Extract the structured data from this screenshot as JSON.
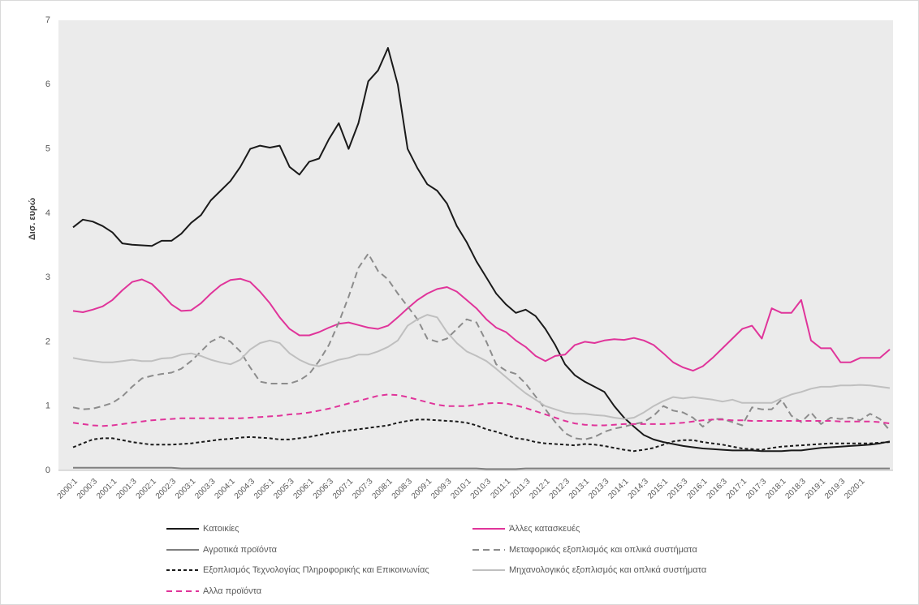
{
  "chart_data": {
    "type": "line",
    "y_label": "Δισ. ευρώ",
    "categories": [
      "2000:1",
      null,
      "2000:3",
      null,
      "2001:1",
      null,
      "2001:3",
      null,
      "2002:1",
      null,
      "2002:3",
      null,
      "2003:1",
      null,
      "2003:3",
      null,
      "2004:1",
      null,
      "2004:3",
      null,
      "2005:1",
      null,
      "2005:3",
      null,
      "2006:1",
      null,
      "2006:3",
      null,
      "2007:1",
      null,
      "2007:3",
      null,
      "2008:1",
      null,
      "2008:3",
      null,
      "2009:1",
      null,
      "2009:3",
      null,
      "2010:1",
      null,
      "2010:3",
      null,
      "2011:1",
      null,
      "2011:3",
      null,
      "2012:1",
      null,
      "2012:3",
      null,
      "2013:1",
      null,
      "2013:3",
      null,
      "2014:1",
      null,
      "2014:3",
      null,
      "2015:1",
      null,
      "2015:3",
      null,
      "2016:1",
      null,
      "2016:3",
      null,
      "2017:1",
      null,
      "2017:3",
      null,
      "2018:1",
      null,
      "2018:3",
      null,
      "2019:1",
      null,
      "2019:3",
      null,
      "2020:1",
      null,
      null,
      null
    ],
    "ylim": [
      0,
      7
    ],
    "yticks": [
      0,
      1,
      2,
      3,
      4,
      5,
      6,
      7
    ],
    "series": [
      {
        "name": "Κατοικίες",
        "color": "#1a1a1a",
        "dash": false,
        "values": [
          3.78,
          3.9,
          3.87,
          3.8,
          3.7,
          3.53,
          3.51,
          3.5,
          3.49,
          3.57,
          3.57,
          3.68,
          3.85,
          3.97,
          4.2,
          4.35,
          4.5,
          4.72,
          5.0,
          5.05,
          5.02,
          5.05,
          4.72,
          4.6,
          4.8,
          4.85,
          5.15,
          5.4,
          5.0,
          5.4,
          6.05,
          6.22,
          6.57,
          6.0,
          5.0,
          4.7,
          4.45,
          4.35,
          4.15,
          3.8,
          3.55,
          3.25,
          3.0,
          2.75,
          2.58,
          2.45,
          2.5,
          2.4,
          2.2,
          1.95,
          1.65,
          1.48,
          1.38,
          1.3,
          1.22,
          1.0,
          0.82,
          0.68,
          0.55,
          0.48,
          0.44,
          0.41,
          0.38,
          0.36,
          0.34,
          0.33,
          0.32,
          0.31,
          0.31,
          0.31,
          0.3,
          0.3,
          0.3,
          0.31,
          0.31,
          0.33,
          0.35,
          0.36,
          0.37,
          0.38,
          0.39,
          0.4,
          0.42,
          0.45
        ]
      },
      {
        "name": "Άλλες κατασκευές",
        "color": "#e0349a",
        "dash": false,
        "values": [
          2.48,
          2.46,
          2.5,
          2.55,
          2.65,
          2.8,
          2.93,
          2.97,
          2.9,
          2.75,
          2.58,
          2.48,
          2.49,
          2.6,
          2.75,
          2.88,
          2.96,
          2.98,
          2.93,
          2.78,
          2.6,
          2.38,
          2.2,
          2.1,
          2.1,
          2.15,
          2.22,
          2.28,
          2.3,
          2.26,
          2.22,
          2.2,
          2.25,
          2.38,
          2.52,
          2.65,
          2.75,
          2.82,
          2.85,
          2.78,
          2.65,
          2.52,
          2.35,
          2.22,
          2.15,
          2.02,
          1.92,
          1.78,
          1.7,
          1.78,
          1.8,
          1.95,
          2.0,
          1.98,
          2.02,
          2.04,
          2.03,
          2.06,
          2.02,
          1.95,
          1.82,
          1.68,
          1.6,
          1.55,
          1.62,
          1.75,
          1.9,
          2.05,
          2.2,
          2.25,
          2.05,
          2.52,
          2.45,
          2.45,
          2.65,
          2.02,
          1.9,
          1.9,
          1.68,
          1.68,
          1.75,
          1.75,
          1.75,
          1.88
        ]
      },
      {
        "name": "Αγροτικά προϊόντα",
        "color": "#7f7f7f",
        "dash": false,
        "values": [
          0.04,
          0.04,
          0.04,
          0.04,
          0.04,
          0.04,
          0.04,
          0.04,
          0.04,
          0.04,
          0.04,
          0.03,
          0.03,
          0.03,
          0.03,
          0.03,
          0.03,
          0.03,
          0.03,
          0.03,
          0.03,
          0.03,
          0.03,
          0.03,
          0.03,
          0.03,
          0.03,
          0.03,
          0.03,
          0.03,
          0.03,
          0.03,
          0.03,
          0.03,
          0.03,
          0.03,
          0.03,
          0.03,
          0.03,
          0.03,
          0.03,
          0.03,
          0.02,
          0.02,
          0.02,
          0.02,
          0.03,
          0.03,
          0.03,
          0.03,
          0.03,
          0.03,
          0.03,
          0.03,
          0.03,
          0.03,
          0.03,
          0.03,
          0.03,
          0.03,
          0.03,
          0.03,
          0.03,
          0.03,
          0.03,
          0.03,
          0.03,
          0.03,
          0.03,
          0.03,
          0.03,
          0.03,
          0.03,
          0.03,
          0.03,
          0.03,
          0.03,
          0.03,
          0.03,
          0.03,
          0.03,
          0.03,
          0.03,
          0.03
        ]
      },
      {
        "name": "Μεταφορικός εξοπλισμός και οπλικά συστήματα",
        "color": "#8c8c8c",
        "dash": true,
        "values": [
          0.98,
          0.95,
          0.96,
          1.0,
          1.05,
          1.15,
          1.3,
          1.43,
          1.47,
          1.5,
          1.52,
          1.58,
          1.7,
          1.85,
          2.0,
          2.08,
          2.0,
          1.85,
          1.6,
          1.38,
          1.35,
          1.35,
          1.35,
          1.4,
          1.5,
          1.7,
          1.95,
          2.3,
          2.7,
          3.15,
          3.37,
          3.1,
          2.97,
          2.75,
          2.55,
          2.35,
          2.05,
          2.0,
          2.05,
          2.2,
          2.35,
          2.3,
          2.0,
          1.65,
          1.55,
          1.5,
          1.35,
          1.15,
          0.95,
          0.75,
          0.58,
          0.5,
          0.48,
          0.52,
          0.6,
          0.65,
          0.68,
          0.72,
          0.75,
          0.85,
          1.0,
          0.93,
          0.9,
          0.82,
          0.68,
          0.8,
          0.8,
          0.75,
          0.7,
          0.98,
          0.95,
          0.95,
          1.1,
          0.85,
          0.75,
          0.9,
          0.72,
          0.82,
          0.8,
          0.82,
          0.78,
          0.88,
          0.8,
          0.62
        ]
      },
      {
        "name": "Εξοπλισμός Τεχνολογίας Πληροφορικής και Επικοινωνίας",
        "color": "#1a1a1a",
        "dash": true,
        "values": [
          0.36,
          0.42,
          0.48,
          0.5,
          0.5,
          0.47,
          0.44,
          0.42,
          0.4,
          0.4,
          0.4,
          0.41,
          0.42,
          0.44,
          0.46,
          0.48,
          0.49,
          0.51,
          0.52,
          0.51,
          0.5,
          0.48,
          0.48,
          0.5,
          0.52,
          0.55,
          0.58,
          0.6,
          0.62,
          0.64,
          0.66,
          0.68,
          0.7,
          0.74,
          0.77,
          0.79,
          0.79,
          0.78,
          0.77,
          0.76,
          0.74,
          0.7,
          0.64,
          0.6,
          0.55,
          0.5,
          0.48,
          0.44,
          0.42,
          0.41,
          0.4,
          0.39,
          0.41,
          0.4,
          0.38,
          0.35,
          0.32,
          0.3,
          0.32,
          0.35,
          0.4,
          0.45,
          0.47,
          0.47,
          0.44,
          0.42,
          0.4,
          0.37,
          0.34,
          0.33,
          0.32,
          0.35,
          0.37,
          0.38,
          0.39,
          0.4,
          0.41,
          0.42,
          0.42,
          0.42,
          0.42,
          0.42,
          0.43,
          0.44
        ]
      },
      {
        "name": "Μηχανολογικός εξοπλισμός και οπλικά συστήματα",
        "color": "#bfbfbf",
        "dash": false,
        "values": [
          1.75,
          1.72,
          1.7,
          1.68,
          1.68,
          1.7,
          1.72,
          1.7,
          1.7,
          1.74,
          1.75,
          1.8,
          1.82,
          1.78,
          1.72,
          1.68,
          1.65,
          1.72,
          1.88,
          1.98,
          2.02,
          1.98,
          1.82,
          1.72,
          1.65,
          1.62,
          1.67,
          1.72,
          1.75,
          1.8,
          1.8,
          1.85,
          1.92,
          2.02,
          2.25,
          2.35,
          2.42,
          2.38,
          2.15,
          1.98,
          1.85,
          1.78,
          1.7,
          1.58,
          1.45,
          1.32,
          1.2,
          1.1,
          1.0,
          0.95,
          0.9,
          0.88,
          0.88,
          0.86,
          0.85,
          0.82,
          0.8,
          0.82,
          0.9,
          1.0,
          1.08,
          1.14,
          1.12,
          1.14,
          1.12,
          1.1,
          1.07,
          1.1,
          1.05,
          1.05,
          1.05,
          1.05,
          1.12,
          1.18,
          1.22,
          1.27,
          1.3,
          1.3,
          1.32,
          1.32,
          1.33,
          1.32,
          1.3,
          1.28
        ]
      },
      {
        "name": "Αλλα προϊόντα",
        "color": "#e0349a",
        "dash": true,
        "values": [
          0.74,
          0.72,
          0.7,
          0.69,
          0.7,
          0.72,
          0.74,
          0.76,
          0.78,
          0.79,
          0.8,
          0.81,
          0.81,
          0.81,
          0.81,
          0.81,
          0.81,
          0.81,
          0.82,
          0.83,
          0.84,
          0.85,
          0.87,
          0.88,
          0.9,
          0.93,
          0.96,
          1.0,
          1.04,
          1.08,
          1.12,
          1.16,
          1.18,
          1.17,
          1.14,
          1.1,
          1.06,
          1.02,
          1.0,
          1.0,
          1.0,
          1.02,
          1.04,
          1.05,
          1.04,
          1.01,
          0.97,
          0.92,
          0.87,
          0.82,
          0.77,
          0.73,
          0.71,
          0.7,
          0.7,
          0.71,
          0.72,
          0.72,
          0.72,
          0.72,
          0.72,
          0.73,
          0.74,
          0.76,
          0.78,
          0.79,
          0.79,
          0.78,
          0.78,
          0.77,
          0.77,
          0.77,
          0.77,
          0.77,
          0.77,
          0.77,
          0.77,
          0.77,
          0.76,
          0.76,
          0.76,
          0.76,
          0.75,
          0.73
        ]
      }
    ]
  }
}
